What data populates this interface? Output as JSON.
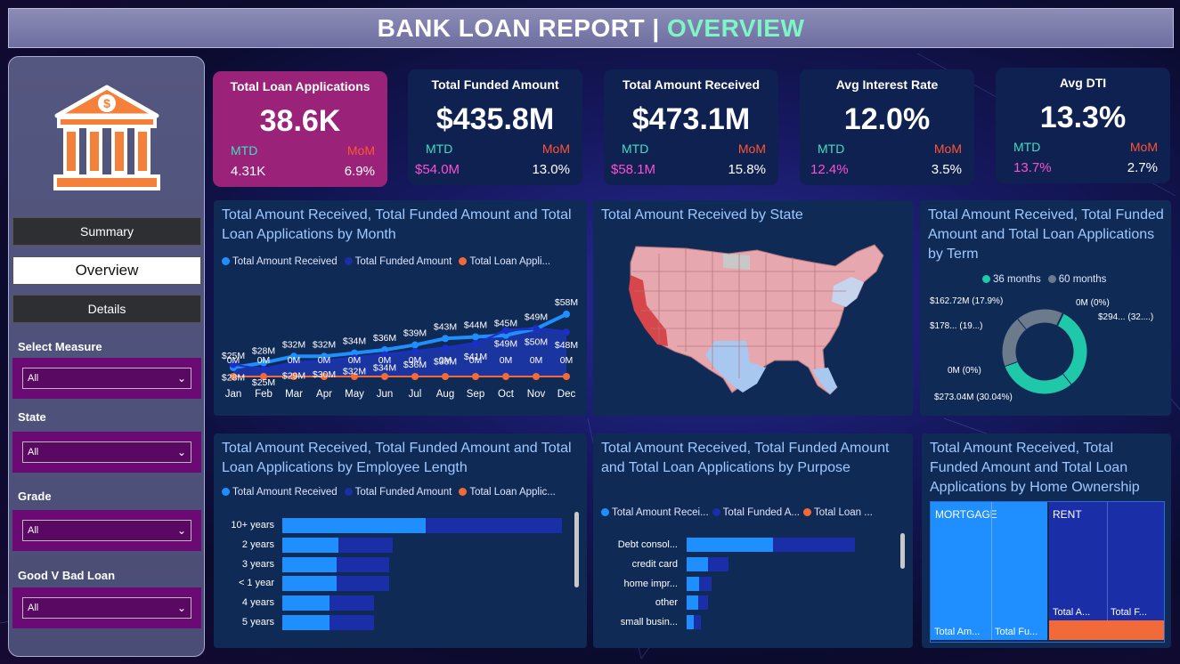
{
  "header": {
    "title_main": "BANK LOAN REPORT |",
    "title_highlight": "OVERVIEW"
  },
  "sidebar": {
    "nav": [
      {
        "label": "Summary"
      },
      {
        "label": "Overview"
      },
      {
        "label": "Details"
      }
    ],
    "filters": [
      {
        "label": "Select Measure",
        "value": "All"
      },
      {
        "label": "State",
        "value": "All"
      },
      {
        "label": "Grade",
        "value": "All"
      },
      {
        "label": "Good V Bad Loan",
        "value": "All"
      }
    ]
  },
  "kpis": [
    {
      "title": "Total Loan Applications",
      "value": "38.6K",
      "mtd_label": "MTD",
      "mom_label": "MoM",
      "mtd": "4.31K",
      "mom": "6.9%"
    },
    {
      "title": "Total Funded Amount",
      "value": "$435.8M",
      "mtd_label": "MTD",
      "mom_label": "MoM",
      "mtd": "$54.0M",
      "mom": "13.0%"
    },
    {
      "title": "Total Amount Received",
      "value": "$473.1M",
      "mtd_label": "MTD",
      "mom_label": "MoM",
      "mtd": "$58.1M",
      "mom": "15.8%"
    },
    {
      "title": "Avg Interest Rate",
      "value": "12.0%",
      "mtd_label": "MTD",
      "mom_label": "MoM",
      "mtd": "12.4%",
      "mom": "3.5%"
    },
    {
      "title": "Avg DTI",
      "value": "13.3%",
      "mtd_label": "MTD",
      "mom_label": "MoM",
      "mtd": "13.7%",
      "mom": "2.7%"
    }
  ],
  "colors": {
    "received": "#1f8fff",
    "funded": "#1a2ea8",
    "applications": "#f26a3a",
    "term36": "#1fc8a8",
    "term60": "#6b7b8c"
  },
  "monthly": {
    "title": "Total Amount Received, Total Funded Amount and Total Loan Applications by Month",
    "legend": [
      "Total Amount Received",
      "Total Funded Amount",
      "Total Loan Appli..."
    ]
  },
  "state_map": {
    "title": "Total Amount Received by State"
  },
  "term": {
    "title": "Total Amount Received, Total Funded Amount and Total Loan Applications by Term",
    "legend": [
      "36 months",
      "60 months"
    ],
    "labels": [
      "$162.72M (17.9%)",
      "0M (0%)",
      "$294... (32....)",
      "$178... (19...)",
      "0M (0%)",
      "$273.04M (30.04%)"
    ]
  },
  "emp_length": {
    "title": "Total Amount Received, Total Funded Amount and Total Loan Applications by Employee Length",
    "legend": [
      "Total Amount Received",
      "Total Funded Amount",
      "Total Loan Applic..."
    ]
  },
  "purpose": {
    "title": "Total Amount Received, Total Funded Amount and Total Loan Applications by Purpose",
    "legend": [
      "Total Amount Recei...",
      "Total Funded A...",
      "Total Loan ..."
    ]
  },
  "home": {
    "title": "Total Amount Received, Total Funded Amount and Total Loan Applications by Home Ownership",
    "cells": [
      "MORTGAGE",
      "RENT",
      "Total Am...",
      "Total Fu...",
      "Total A...",
      "Total F..."
    ]
  },
  "chart_data": [
    {
      "type": "line",
      "categories": [
        "Jan",
        "Feb",
        "Mar",
        "Apr",
        "May",
        "Jun",
        "Jul",
        "Aug",
        "Sep",
        "Oct",
        "Nov",
        "Dec"
      ],
      "series": [
        {
          "name": "Total Amount Received",
          "values": [
            25,
            28,
            32,
            32,
            34,
            36,
            39,
            43,
            44,
            45,
            49,
            58
          ],
          "labels": [
            "$25M",
            "$28M",
            "$32M",
            "$32M",
            "$34M",
            "$36M",
            "$39M",
            "$43M",
            "$44M",
            "$45M",
            "$49M",
            "$58M"
          ]
        },
        {
          "name": "Total Funded Amount",
          "values": [
            28,
            25,
            29,
            30,
            32,
            34,
            36,
            38,
            41,
            49,
            50,
            48
          ],
          "labels": [
            "$28M",
            "$25M",
            "$29M",
            "$30M",
            "$32M",
            "$34M",
            "$36M",
            "$38M",
            "$41M",
            "$49M",
            "$50M",
            "$48M"
          ]
        },
        {
          "name": "Total Loan Appli...",
          "values": [
            0,
            0,
            0,
            0,
            0,
            0,
            0,
            0,
            0,
            0,
            0,
            0
          ],
          "labels": [
            "0M",
            "0M",
            "0M",
            "0M",
            "0M",
            "0M",
            "0M",
            "0M",
            "0M",
            "0M",
            "0M",
            "0M"
          ]
        }
      ]
    },
    {
      "type": "pie",
      "categories": [
        "36 months",
        "60 months"
      ],
      "slices": [
        {
          "name": "36 months",
          "label": "$294... (32....)",
          "value": 32.0
        },
        {
          "name": "36 months",
          "label": "$273.04M (30.04%)",
          "value": 30.04
        },
        {
          "name": "60 months",
          "label": "$178... (19...)",
          "value": 19.6
        },
        {
          "name": "60 months",
          "label": "$162.72M (17.9%)",
          "value": 17.9
        }
      ]
    },
    {
      "type": "bar",
      "categories": [
        "10+ years",
        "2 years",
        "3 years",
        "< 1 year",
        "4 years",
        "5 years"
      ],
      "series": [
        {
          "name": "Total Amount Received",
          "values": [
            116,
            45,
            44,
            44,
            38,
            38
          ]
        },
        {
          "name": "Total Funded Amount",
          "values": [
            110,
            44,
            42,
            42,
            36,
            36
          ]
        }
      ]
    },
    {
      "type": "bar",
      "categories": [
        "Debt consol...",
        "credit card",
        "home impr...",
        "other",
        "small busin..."
      ],
      "series": [
        {
          "name": "Total Amount Recei...",
          "values": [
            230,
            58,
            34,
            30,
            20
          ]
        },
        {
          "name": "Total Funded A...",
          "values": [
            220,
            54,
            32,
            28,
            18
          ]
        }
      ]
    }
  ]
}
